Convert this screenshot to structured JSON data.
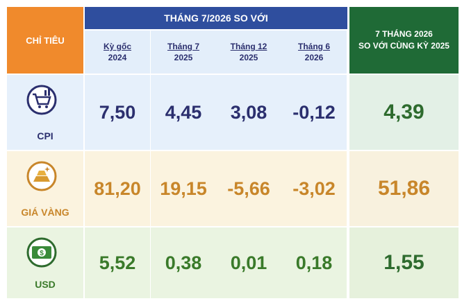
{
  "header": {
    "indicator": "CHỈ TIÊU",
    "group": "THÁNG 7/2026 SO VỚI",
    "columns": [
      [
        "Kỳ gốc",
        "2024"
      ],
      [
        "Tháng 7",
        "2025"
      ],
      [
        "Tháng 12",
        "2025"
      ],
      [
        "Tháng 6",
        "2026"
      ]
    ],
    "ytd": [
      "7 THÁNG 2026",
      "SO VỚI CÙNG KỲ 2025"
    ]
  },
  "rows": [
    {
      "label": "CPI",
      "values": [
        "7,50",
        "4,45",
        "3,08",
        "-0,12"
      ],
      "ytd": "4,39"
    },
    {
      "label": "GIÁ VÀNG",
      "values": [
        "81,20",
        "19,15",
        "-5,66",
        "-3,02"
      ],
      "ytd": "51,86"
    },
    {
      "label": "USD",
      "values": [
        "5,52",
        "0,38",
        "0,01",
        "0,18"
      ],
      "ytd": "1,55"
    }
  ]
}
